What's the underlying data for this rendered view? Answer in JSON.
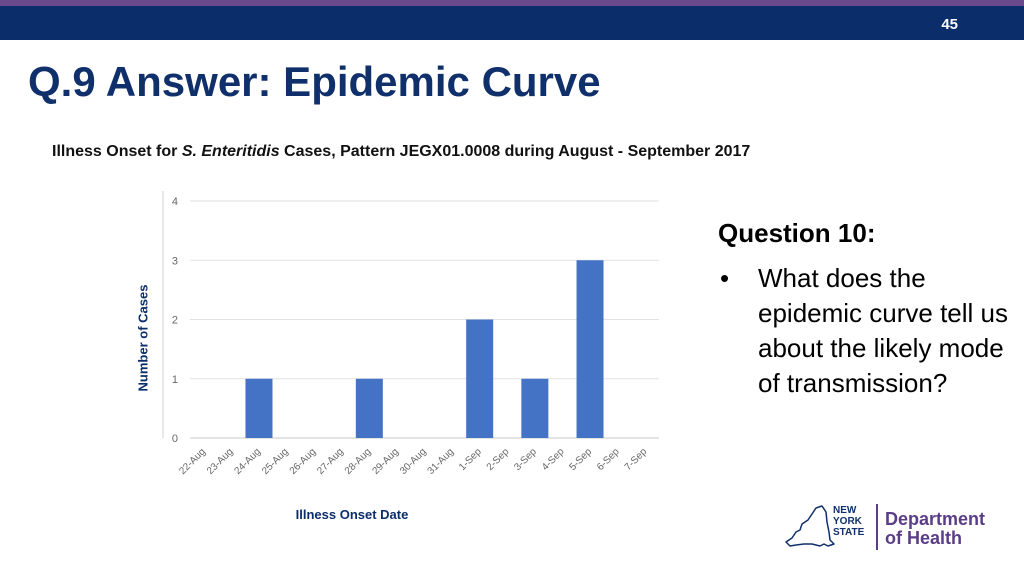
{
  "page_number": "45",
  "slide_title": "Q.9 Answer: Epidemic Curve",
  "chart_title": {
    "part1": "Illness Onset for ",
    "italic": "S. Enteritidis",
    "part2": " Cases, Pattern JEGX01.0008 during August - September 2017"
  },
  "chart_data": {
    "type": "bar",
    "categories": [
      "22-Aug",
      "23-Aug",
      "24-Aug",
      "25-Aug",
      "26-Aug",
      "27-Aug",
      "28-Aug",
      "29-Aug",
      "30-Aug",
      "31-Aug",
      "1-Sep",
      "2-Sep",
      "3-Sep",
      "4-Sep",
      "5-Sep",
      "6-Sep",
      "7-Sep"
    ],
    "values": [
      0,
      0,
      1,
      0,
      0,
      0,
      1,
      0,
      0,
      0,
      2,
      0,
      1,
      0,
      3,
      0,
      0
    ],
    "ylim": [
      0,
      4
    ],
    "yticks": [
      "0",
      "1",
      "2",
      "3",
      "4"
    ],
    "xlabel": "Illness Onset Date",
    "ylabel": "Number of Cases",
    "bar_color": "#4472c4",
    "grid": true,
    "legend": "none"
  },
  "question": {
    "heading": "Question 10:",
    "bullet": "What does the epidemic curve tell us about the likely mode of transmission?"
  },
  "logo": {
    "state_line1": "NEW",
    "state_line2": "YORK",
    "state_line3": "STATE",
    "dept_line1": "Department",
    "dept_line2": "of Health",
    "icon": "new-york-state-outline-icon"
  },
  "colors": {
    "header_bar": "#0b2e6b",
    "header_accent": "#6a4a8c",
    "title": "#10306b",
    "logo_purple": "#5a3d86"
  }
}
